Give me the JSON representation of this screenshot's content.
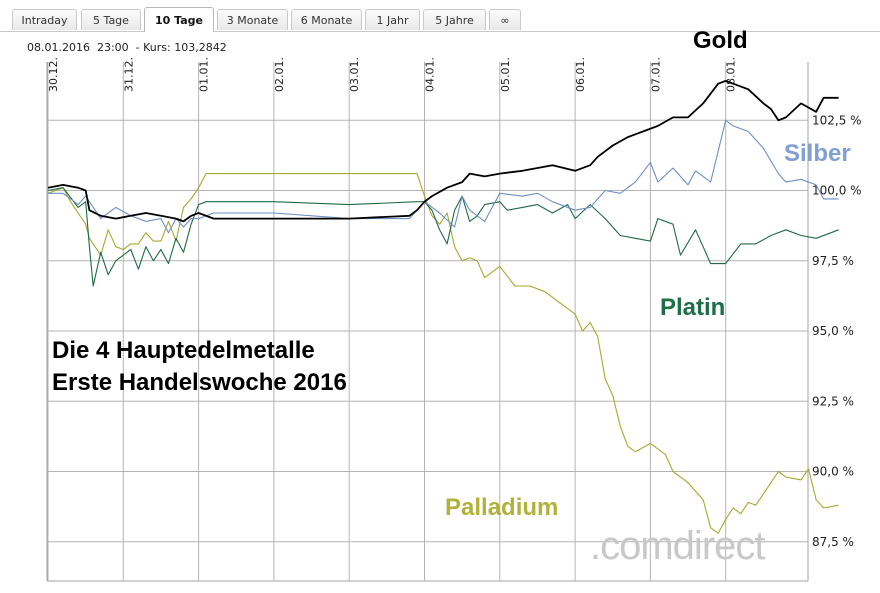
{
  "tabs": [
    {
      "label": "Intraday",
      "active": false
    },
    {
      "label": "5 Tage",
      "active": false
    },
    {
      "label": "10 Tage",
      "active": true
    },
    {
      "label": "3 Monate",
      "active": false
    },
    {
      "label": "6 Monate",
      "active": false
    },
    {
      "label": "1 Jahr",
      "active": false
    },
    {
      "label": "5 Jahre",
      "active": false
    },
    {
      "label": "∞",
      "active": false
    }
  ],
  "quote_line": "08.01.2016  23:00  - Kurs: 103,2842",
  "annotations": {
    "gold": "Gold",
    "silber": "Silber",
    "platin": "Platin",
    "palladium": "Palladium",
    "title_line1": "Die 4 Hauptedelmetalle",
    "title_line2": "Erste Handelswoche 2016",
    "watermark": ".comdirect"
  },
  "colors": {
    "gold": "#000000",
    "silber": "#6c8fc8",
    "platin": "#1e6b45",
    "palladium": "#a8a830",
    "silber_label": "#7f9fd6",
    "platin_label": "#1e6e48",
    "palladium_label": "#b2b23a",
    "grid": "#b4b4b4"
  },
  "chart_data": {
    "type": "line",
    "x_labels": [
      "30.12.",
      "31.12.",
      "01.01.",
      "02.01.",
      "03.01.",
      "04.01.",
      "05.01.",
      "06.01.",
      "07.01.",
      "08.01."
    ],
    "y_ticks": [
      "102,5 %",
      "100,0 %",
      "97,5 %",
      "95,0 %",
      "92,5 %",
      "90,0 %",
      "87,5 %"
    ],
    "y_tick_values": [
      102.5,
      100.0,
      97.5,
      95.0,
      92.5,
      90.0,
      87.5
    ],
    "x_range": [
      0,
      10
    ],
    "ylim": [
      86.2,
      104.6
    ],
    "grid": true,
    "series": [
      {
        "name": "Gold",
        "points": [
          [
            0,
            100.1
          ],
          [
            0.2,
            100.2
          ],
          [
            0.4,
            100.1
          ],
          [
            0.5,
            100.0
          ],
          [
            0.55,
            99.3
          ],
          [
            0.7,
            99.1
          ],
          [
            0.9,
            99.0
          ],
          [
            1.1,
            99.1
          ],
          [
            1.3,
            99.2
          ],
          [
            1.5,
            99.1
          ],
          [
            1.7,
            99.0
          ],
          [
            1.8,
            98.9
          ],
          [
            1.9,
            99.1
          ],
          [
            2.0,
            99.2
          ],
          [
            2.2,
            99.0
          ],
          [
            3.0,
            99.0
          ],
          [
            4.0,
            99.0
          ],
          [
            4.8,
            99.1
          ],
          [
            4.9,
            99.3
          ],
          [
            5.0,
            99.6
          ],
          [
            5.1,
            99.8
          ],
          [
            5.3,
            100.1
          ],
          [
            5.5,
            100.3
          ],
          [
            5.6,
            100.6
          ],
          [
            5.8,
            100.5
          ],
          [
            6.0,
            100.6
          ],
          [
            6.3,
            100.7
          ],
          [
            6.5,
            100.8
          ],
          [
            6.7,
            100.9
          ],
          [
            7.0,
            100.7
          ],
          [
            7.2,
            100.9
          ],
          [
            7.3,
            101.2
          ],
          [
            7.5,
            101.6
          ],
          [
            7.7,
            101.9
          ],
          [
            7.9,
            102.1
          ],
          [
            8.1,
            102.3
          ],
          [
            8.3,
            102.6
          ],
          [
            8.5,
            102.6
          ],
          [
            8.7,
            103.1
          ],
          [
            8.9,
            103.8
          ],
          [
            9.0,
            103.9
          ],
          [
            9.1,
            103.8
          ],
          [
            9.3,
            103.6
          ],
          [
            9.5,
            103.1
          ],
          [
            9.6,
            102.9
          ],
          [
            9.7,
            102.5
          ],
          [
            9.8,
            102.6
          ],
          [
            10.0,
            103.1
          ],
          [
            10.2,
            102.8
          ],
          [
            10.3,
            103.3
          ],
          [
            10.5,
            103.3
          ]
        ]
      },
      {
        "name": "Silber",
        "points": [
          [
            0,
            99.9
          ],
          [
            0.2,
            99.9
          ],
          [
            0.4,
            99.5
          ],
          [
            0.5,
            99.8
          ],
          [
            0.55,
            99.6
          ],
          [
            0.7,
            99.0
          ],
          [
            0.9,
            99.4
          ],
          [
            1.1,
            99.1
          ],
          [
            1.3,
            98.9
          ],
          [
            1.5,
            99.0
          ],
          [
            1.6,
            98.5
          ],
          [
            1.7,
            99.0
          ],
          [
            1.8,
            98.7
          ],
          [
            1.9,
            99.0
          ],
          [
            2.0,
            99.0
          ],
          [
            2.2,
            99.2
          ],
          [
            3.0,
            99.2
          ],
          [
            4.0,
            99.0
          ],
          [
            4.8,
            99.0
          ],
          [
            5.0,
            99.6
          ],
          [
            5.2,
            99.2
          ],
          [
            5.4,
            98.7
          ],
          [
            5.5,
            99.8
          ],
          [
            5.6,
            99.3
          ],
          [
            5.8,
            98.9
          ],
          [
            6.0,
            99.9
          ],
          [
            6.3,
            99.8
          ],
          [
            6.5,
            99.9
          ],
          [
            6.7,
            99.6
          ],
          [
            7.0,
            99.3
          ],
          [
            7.2,
            99.4
          ],
          [
            7.4,
            100.0
          ],
          [
            7.6,
            99.9
          ],
          [
            7.8,
            100.3
          ],
          [
            8.0,
            101.0
          ],
          [
            8.1,
            100.3
          ],
          [
            8.3,
            100.8
          ],
          [
            8.5,
            100.2
          ],
          [
            8.6,
            100.7
          ],
          [
            8.8,
            100.3
          ],
          [
            9.0,
            102.5
          ],
          [
            9.1,
            102.3
          ],
          [
            9.3,
            102.1
          ],
          [
            9.5,
            101.5
          ],
          [
            9.7,
            100.6
          ],
          [
            9.8,
            100.3
          ],
          [
            10.0,
            100.4
          ],
          [
            10.2,
            100.2
          ],
          [
            10.3,
            99.7
          ],
          [
            10.5,
            99.7
          ]
        ]
      },
      {
        "name": "Platin",
        "points": [
          [
            0,
            100.0
          ],
          [
            0.2,
            100.1
          ],
          [
            0.4,
            99.4
          ],
          [
            0.5,
            99.6
          ],
          [
            0.55,
            98.0
          ],
          [
            0.6,
            96.6
          ],
          [
            0.7,
            97.8
          ],
          [
            0.8,
            97.0
          ],
          [
            0.9,
            97.5
          ],
          [
            1.1,
            97.9
          ],
          [
            1.2,
            97.2
          ],
          [
            1.3,
            98.0
          ],
          [
            1.4,
            97.5
          ],
          [
            1.5,
            97.9
          ],
          [
            1.6,
            97.4
          ],
          [
            1.7,
            98.3
          ],
          [
            1.8,
            97.8
          ],
          [
            1.9,
            98.8
          ],
          [
            2.0,
            99.5
          ],
          [
            2.1,
            99.6
          ],
          [
            3.0,
            99.6
          ],
          [
            4.0,
            99.5
          ],
          [
            4.9,
            99.6
          ],
          [
            5.0,
            99.6
          ],
          [
            5.1,
            99.3
          ],
          [
            5.2,
            98.6
          ],
          [
            5.3,
            98.1
          ],
          [
            5.4,
            99.3
          ],
          [
            5.5,
            99.8
          ],
          [
            5.6,
            98.9
          ],
          [
            5.7,
            99.1
          ],
          [
            5.8,
            99.5
          ],
          [
            6.0,
            99.6
          ],
          [
            6.1,
            99.3
          ],
          [
            6.3,
            99.4
          ],
          [
            6.5,
            99.5
          ],
          [
            6.7,
            99.2
          ],
          [
            6.9,
            99.5
          ],
          [
            7.0,
            99.0
          ],
          [
            7.2,
            99.5
          ],
          [
            7.4,
            99.0
          ],
          [
            7.6,
            98.4
          ],
          [
            7.8,
            98.3
          ],
          [
            8.0,
            98.2
          ],
          [
            8.1,
            99.0
          ],
          [
            8.3,
            98.8
          ],
          [
            8.4,
            97.7
          ],
          [
            8.6,
            98.6
          ],
          [
            8.8,
            97.4
          ],
          [
            9.0,
            97.4
          ],
          [
            9.2,
            98.1
          ],
          [
            9.4,
            98.1
          ],
          [
            9.6,
            98.4
          ],
          [
            9.8,
            98.6
          ],
          [
            10.0,
            98.4
          ],
          [
            10.2,
            98.3
          ],
          [
            10.4,
            98.5
          ],
          [
            10.5,
            98.6
          ]
        ]
      },
      {
        "name": "Palladium",
        "points": [
          [
            0,
            99.9
          ],
          [
            0.2,
            100.1
          ],
          [
            0.3,
            99.6
          ],
          [
            0.4,
            99.2
          ],
          [
            0.5,
            98.8
          ],
          [
            0.55,
            98.3
          ],
          [
            0.7,
            97.7
          ],
          [
            0.8,
            98.6
          ],
          [
            0.9,
            98.0
          ],
          [
            1.0,
            97.9
          ],
          [
            1.1,
            98.1
          ],
          [
            1.2,
            98.1
          ],
          [
            1.3,
            98.5
          ],
          [
            1.4,
            98.2
          ],
          [
            1.5,
            98.2
          ],
          [
            1.6,
            98.9
          ],
          [
            1.7,
            98.2
          ],
          [
            1.8,
            99.4
          ],
          [
            1.9,
            99.7
          ],
          [
            2.0,
            100.1
          ],
          [
            2.1,
            100.6
          ],
          [
            3.0,
            100.6
          ],
          [
            4.0,
            100.6
          ],
          [
            4.9,
            100.6
          ],
          [
            5.0,
            99.8
          ],
          [
            5.1,
            99.1
          ],
          [
            5.2,
            98.8
          ],
          [
            5.3,
            99.2
          ],
          [
            5.4,
            98.0
          ],
          [
            5.5,
            97.5
          ],
          [
            5.6,
            97.6
          ],
          [
            5.7,
            97.5
          ],
          [
            5.8,
            96.9
          ],
          [
            6.0,
            97.3
          ],
          [
            6.2,
            96.6
          ],
          [
            6.4,
            96.6
          ],
          [
            6.6,
            96.4
          ],
          [
            6.8,
            96.0
          ],
          [
            7.0,
            95.6
          ],
          [
            7.1,
            95.0
          ],
          [
            7.2,
            95.3
          ],
          [
            7.3,
            94.8
          ],
          [
            7.4,
            93.3
          ],
          [
            7.5,
            92.7
          ],
          [
            7.6,
            91.6
          ],
          [
            7.7,
            90.9
          ],
          [
            7.8,
            90.7
          ],
          [
            8.0,
            91.0
          ],
          [
            8.2,
            90.6
          ],
          [
            8.3,
            90.0
          ],
          [
            8.5,
            89.6
          ],
          [
            8.7,
            89.0
          ],
          [
            8.8,
            88.0
          ],
          [
            8.9,
            87.8
          ],
          [
            9.0,
            88.3
          ],
          [
            9.1,
            88.7
          ],
          [
            9.2,
            88.5
          ],
          [
            9.3,
            88.9
          ],
          [
            9.4,
            88.8
          ],
          [
            9.6,
            89.6
          ],
          [
            9.7,
            90.0
          ],
          [
            9.8,
            89.8
          ],
          [
            10.0,
            89.7
          ],
          [
            10.1,
            90.1
          ],
          [
            10.2,
            89.0
          ],
          [
            10.3,
            88.7
          ],
          [
            10.5,
            88.8
          ]
        ]
      }
    ]
  }
}
